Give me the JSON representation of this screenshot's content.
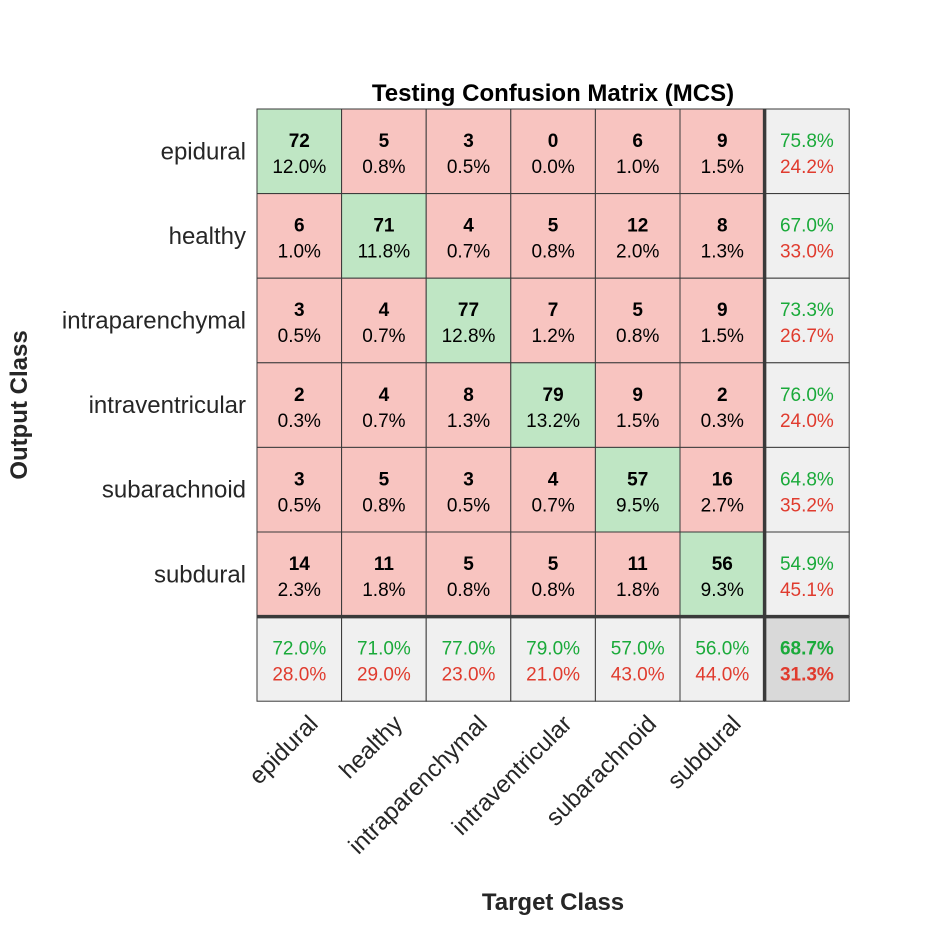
{
  "chart_data": {
    "type": "heatmap",
    "title": "Testing Confusion Matrix (MCS)",
    "xlabel": "Target Class",
    "ylabel": "Output Class",
    "classes": [
      "epidural",
      "healthy",
      "intraparenchymal",
      "intraventricular",
      "subarachnoid",
      "subdural"
    ],
    "matrix": [
      [
        72,
        5,
        3,
        0,
        6,
        9
      ],
      [
        6,
        71,
        4,
        5,
        12,
        8
      ],
      [
        3,
        4,
        77,
        7,
        5,
        9
      ],
      [
        2,
        4,
        8,
        79,
        9,
        2
      ],
      [
        3,
        5,
        3,
        4,
        57,
        16
      ],
      [
        14,
        11,
        5,
        5,
        11,
        56
      ]
    ],
    "matrix_percent": [
      [
        "12.0%",
        "0.8%",
        "0.5%",
        "0.0%",
        "1.0%",
        "1.5%"
      ],
      [
        "1.0%",
        "11.8%",
        "0.7%",
        "0.8%",
        "2.0%",
        "1.3%"
      ],
      [
        "0.5%",
        "0.7%",
        "12.8%",
        "1.2%",
        "0.8%",
        "1.5%"
      ],
      [
        "0.3%",
        "0.7%",
        "1.3%",
        "13.2%",
        "1.5%",
        "0.3%"
      ],
      [
        "0.5%",
        "0.8%",
        "0.5%",
        "0.7%",
        "9.5%",
        "2.7%"
      ],
      [
        "2.3%",
        "1.8%",
        "0.8%",
        "0.8%",
        "1.8%",
        "9.3%"
      ]
    ],
    "row_summary": [
      [
        "75.8%",
        "24.2%"
      ],
      [
        "67.0%",
        "33.0%"
      ],
      [
        "73.3%",
        "26.7%"
      ],
      [
        "76.0%",
        "24.0%"
      ],
      [
        "64.8%",
        "35.2%"
      ],
      [
        "54.9%",
        "45.1%"
      ]
    ],
    "col_summary": [
      [
        "72.0%",
        "28.0%"
      ],
      [
        "71.0%",
        "29.0%"
      ],
      [
        "77.0%",
        "23.0%"
      ],
      [
        "79.0%",
        "21.0%"
      ],
      [
        "57.0%",
        "43.0%"
      ],
      [
        "56.0%",
        "44.0%"
      ]
    ],
    "overall": [
      "68.7%",
      "31.3%"
    ],
    "colors": {
      "correct": "#bfe6c4",
      "incorrect": "#f8c4c0",
      "summary": "#f0f0f0",
      "overall": "#d9d9d9",
      "good_text": "#1aaa3a",
      "bad_text": "#e03b2e"
    }
  }
}
